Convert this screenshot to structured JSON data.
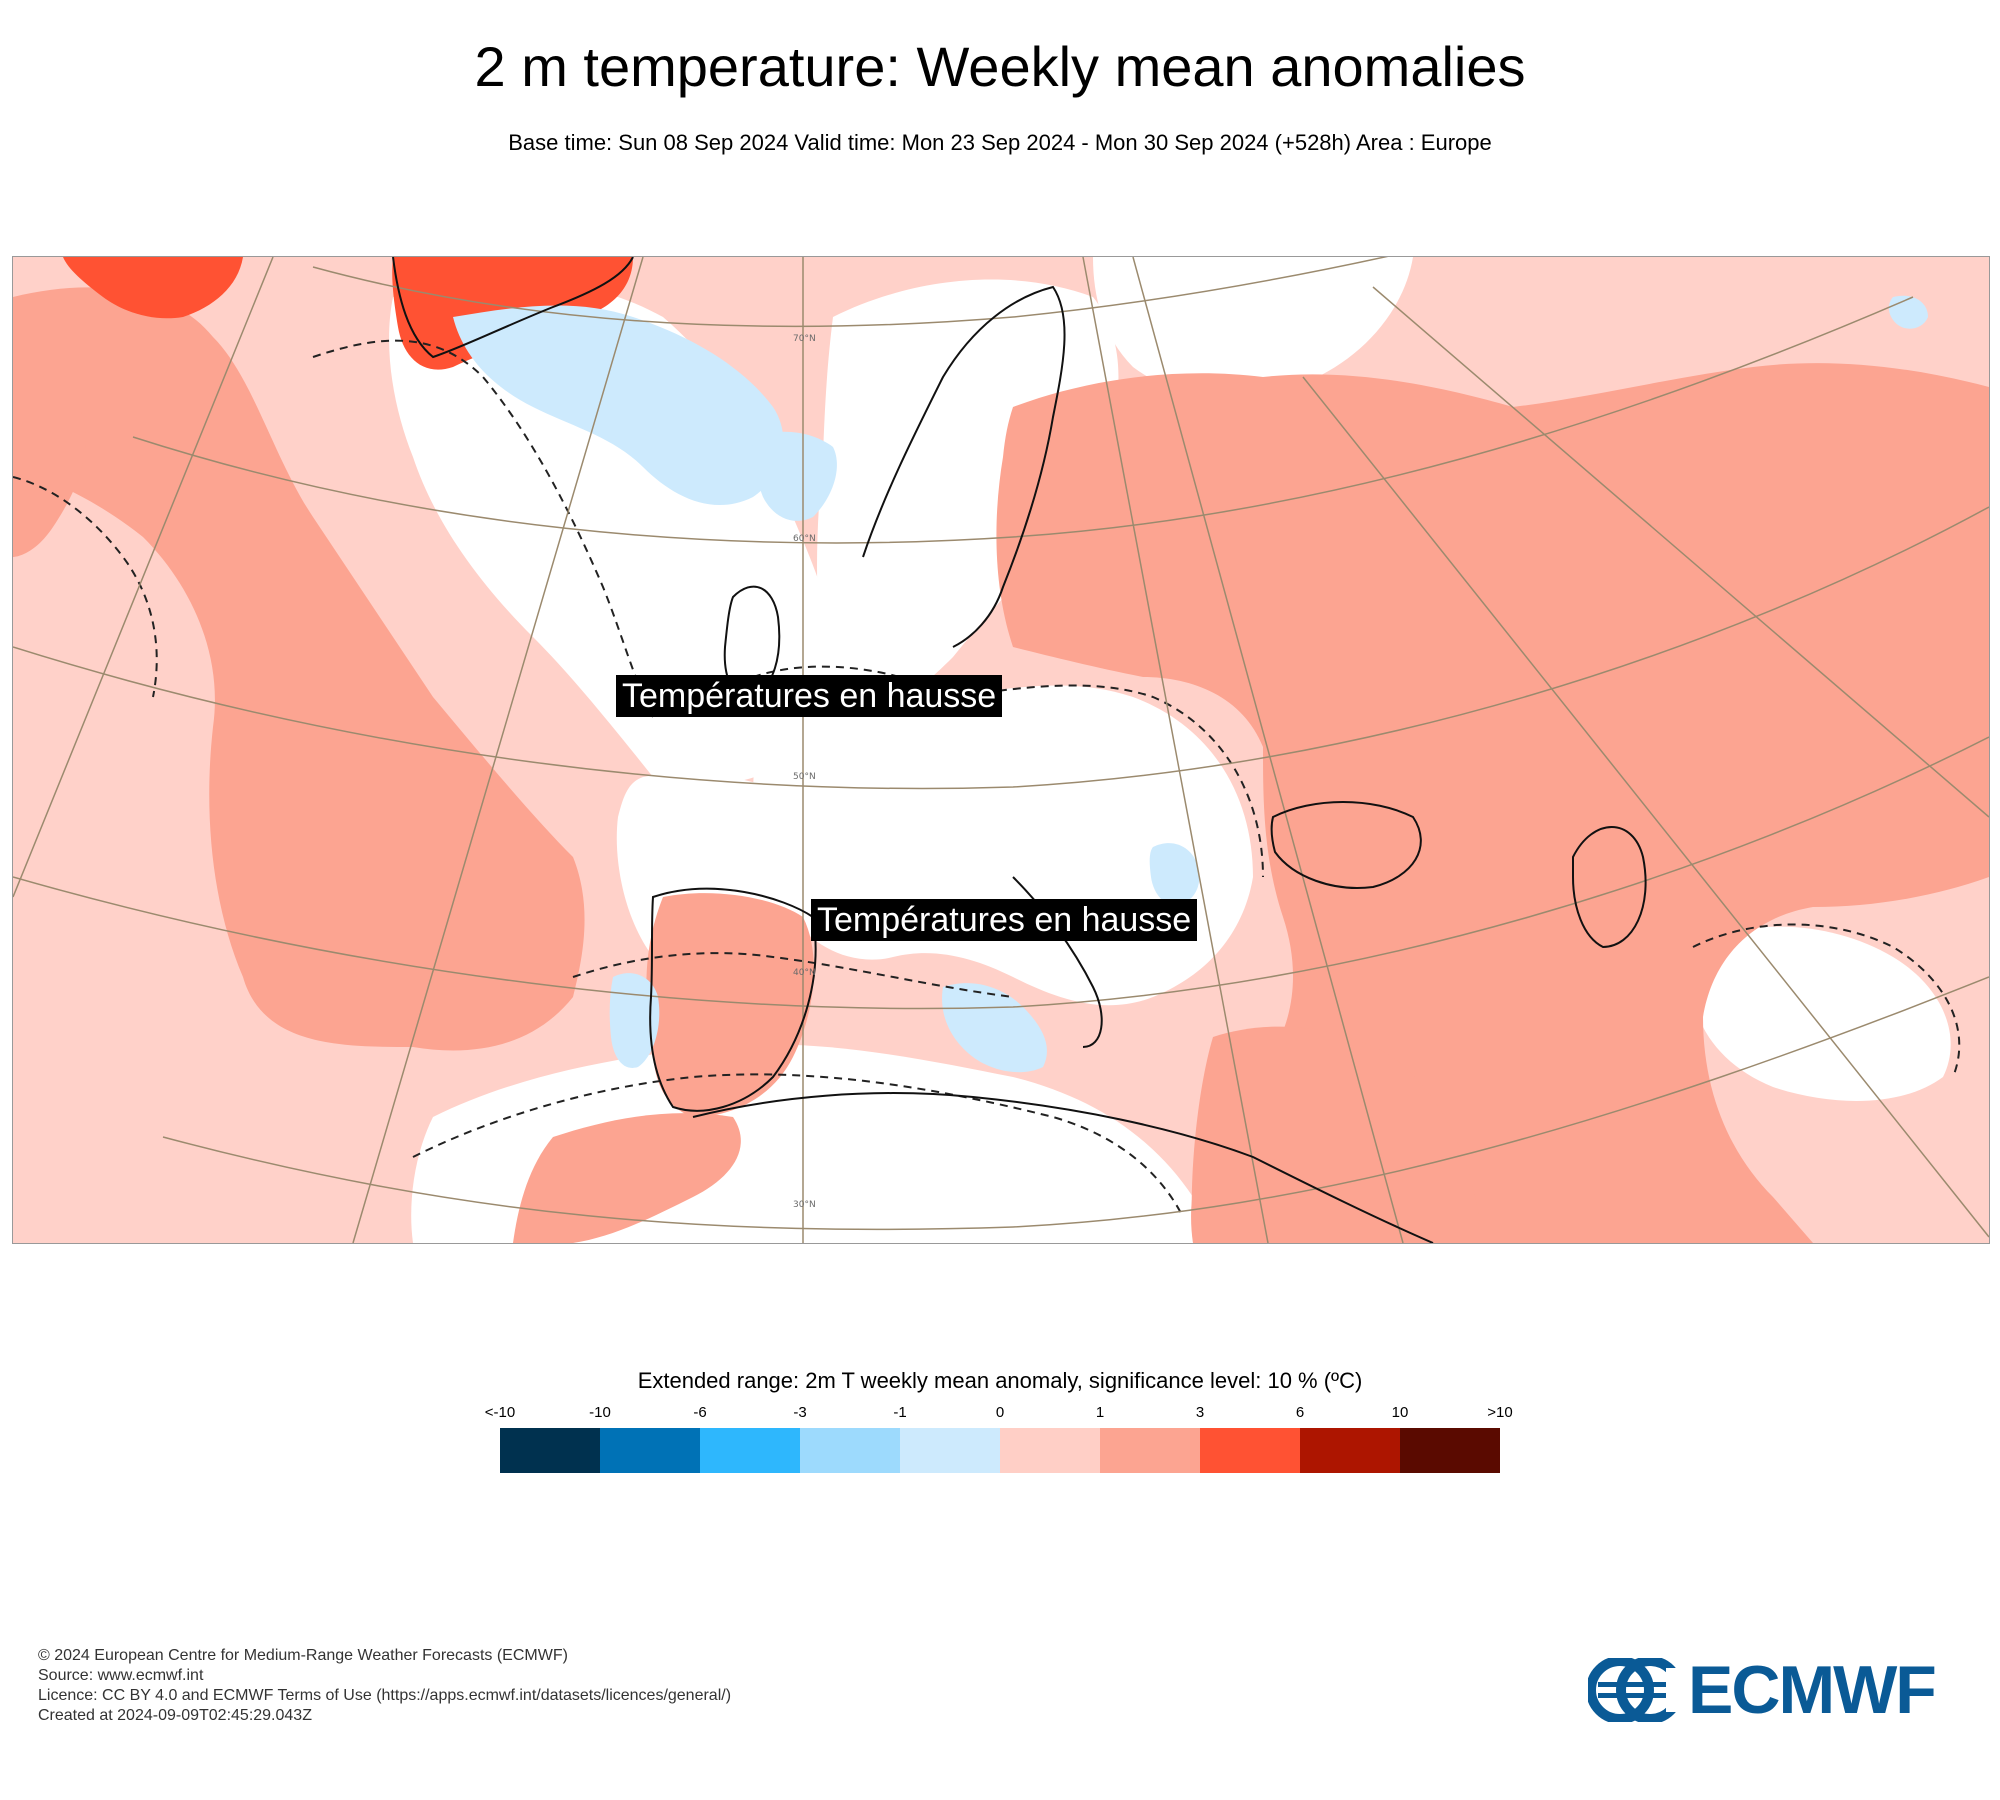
{
  "header": {
    "title": "2 m temperature: Weekly mean anomalies",
    "subtitle": "Base time: Sun 08 Sep 2024 Valid time: Mon 23 Sep 2024 - Mon 30 Sep 2024 (+528h) Area : Europe"
  },
  "map": {
    "annotations": [
      "Températures en hausse",
      "Températures en hausse"
    ],
    "latitude_labels": [
      "70°N",
      "60°N",
      "50°N",
      "40°N",
      "30°N"
    ],
    "colors": {
      "ocean_warm_light": "#ffd1c9",
      "warm_medium": "#fca491",
      "warm_strong": "#ff5233",
      "cool_light": "#cdeafd",
      "cool_medium": "#9fd9fc",
      "neutral": "#ffffff"
    }
  },
  "legend": {
    "title": "Extended range: 2m T weekly mean anomaly, significance level: 10 % (ºC)",
    "ticks": [
      "<-10",
      "-10",
      "-6",
      "-3",
      "-1",
      "0",
      "1",
      "3",
      "6",
      "10",
      ">10"
    ],
    "colors": [
      "#00314f",
      "#0072b6",
      "#2eb7fd",
      "#9ddafd",
      "#cdeafd",
      "#ffcfc6",
      "#fca491",
      "#ff5233",
      "#ad1500",
      "#5a0a00"
    ]
  },
  "footer": {
    "copyright": "© 2024 European Centre for Medium-Range Weather Forecasts (ECMWF)",
    "source": "Source: www.ecmwf.int",
    "licence": "Licence: CC BY 4.0 and ECMWF Terms of Use (https://apps.ecmwf.int/datasets/licences/general/)",
    "created": "Created at 2024-09-09T02:45:29.043Z"
  },
  "logo": {
    "text": "ECMWF",
    "color": "#0a5a96"
  }
}
